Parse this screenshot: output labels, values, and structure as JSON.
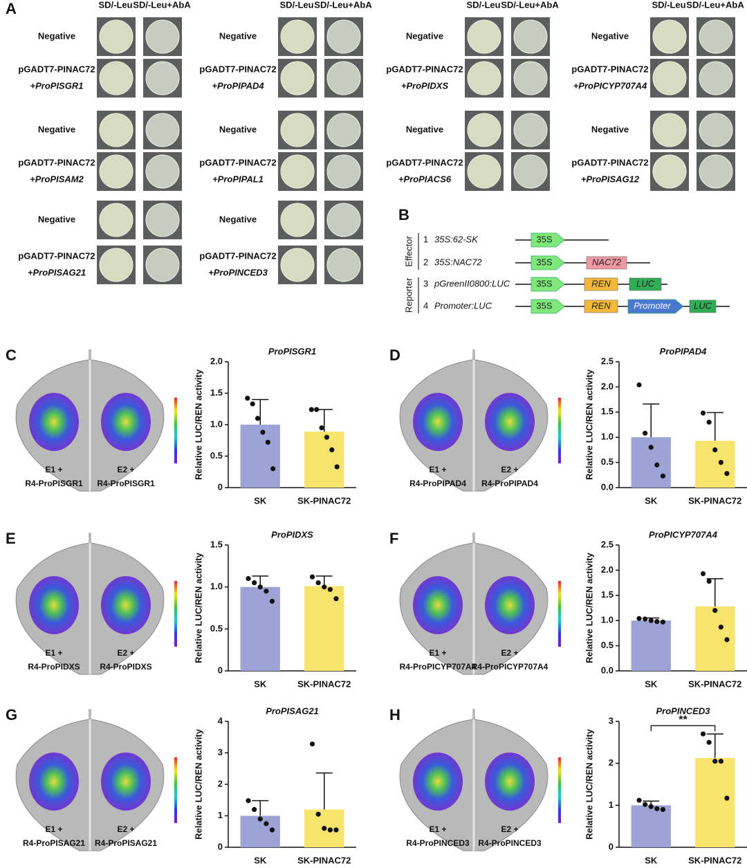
{
  "yeast": {
    "label": "A",
    "columns": [
      {
        "headers": [
          "SD/-Leu",
          "SD/-Leu+AbA"
        ],
        "groups": [
          {
            "negative": "Negative",
            "effector": "pGADT7-PINAC72",
            "promoter": "+ProPISGR1"
          },
          {
            "negative": "Negative",
            "effector": "pGADT7-PINAC72",
            "promoter": "+ProPISAM2"
          },
          {
            "negative": "Negative",
            "effector": "pGADT7-PINAC72",
            "promoter": "+ProPISAG21"
          }
        ]
      },
      {
        "headers": [
          "SD/-Leu",
          "SD/-Leu+AbA"
        ],
        "groups": [
          {
            "negative": "Negative",
            "effector": "pGADT7-PINAC72",
            "promoter": "+ProPIPAD4"
          },
          {
            "negative": "Negative",
            "effector": "pGADT7-PINAC72",
            "promoter": "+ProPIPAL1"
          },
          {
            "negative": "Negative",
            "effector": "pGADT7-PINAC72",
            "promoter": "+ProPINCED3"
          }
        ]
      },
      {
        "headers": [
          "SD/-Leu",
          "SD/-Leu+AbA"
        ],
        "groups": [
          {
            "negative": "Negative",
            "effector": "pGADT7-PINAC72",
            "promoter": "+ProPIDXS"
          },
          {
            "negative": "Negative",
            "effector": "pGADT7-PINAC72",
            "promoter": "+ProPIACS6"
          }
        ]
      },
      {
        "headers": [
          "SD/-Leu",
          "SD/-Leu+AbA"
        ],
        "groups": [
          {
            "negative": "Negative",
            "effector": "pGADT7-PINAC72",
            "promoter": "+ProPICYP707A4"
          },
          {
            "negative": "Negative",
            "effector": "pGADT7-PINAC72",
            "promoter": "+ProPISAG12"
          }
        ]
      }
    ]
  },
  "constructs": {
    "label": "B",
    "groups": [
      "Effector",
      "Reporter"
    ],
    "rows": [
      {
        "number": "1",
        "name": "35S:62-SK",
        "parts": [
          "35S"
        ]
      },
      {
        "number": "2",
        "name": "35S:NAC72",
        "parts": [
          "35S",
          "NAC72"
        ]
      },
      {
        "number": "3",
        "name": "pGreenII0800:LUC",
        "parts": [
          "35S",
          "REN",
          "LUC"
        ]
      },
      {
        "number": "4",
        "name": "Promoter:LUC",
        "parts": [
          "35S",
          "REN",
          "Promoter",
          "LUC"
        ]
      }
    ]
  },
  "leaves": [
    {
      "label": "C",
      "left": [
        "E1 +",
        "R4-ProPISGR1"
      ],
      "right": [
        "E2 +",
        "R4-ProPISGR1"
      ]
    },
    {
      "label": "D",
      "left": [
        "E1 +",
        "R4-ProPIPAD4"
      ],
      "right": [
        "E2 +",
        "R4-ProPIPAD4"
      ]
    },
    {
      "label": "E",
      "left": [
        "E1 +",
        "R4-ProPIDXS"
      ],
      "right": [
        "E2 +",
        "R4-ProPIDXS"
      ]
    },
    {
      "label": "F",
      "left": [
        "E1 +",
        "R4-ProPICYP707A4"
      ],
      "right": [
        "E2 +",
        "R4-ProPICYP707A4"
      ]
    },
    {
      "label": "G",
      "left": [
        "E1 +",
        "R4-ProPISAG21"
      ],
      "right": [
        "E2 +",
        "R4-ProPISAG21"
      ]
    },
    {
      "label": "H",
      "left": [
        "E1 +",
        "R4-ProPINCED3"
      ],
      "right": [
        "E2 +",
        "R4-ProPINCED3"
      ]
    }
  ],
  "chart_data": [
    {
      "type": "bar",
      "title": "ProPISGR1",
      "y_label": "Relative LUC/REN activity",
      "categories": [
        "SK",
        "SK-PINAC72"
      ],
      "values": [
        1.0,
        0.89
      ],
      "errors": [
        0.4,
        0.35
      ],
      "points": [
        [
          1.42,
          1.33,
          1.1,
          0.88,
          0.72,
          0.3
        ],
        [
          1.24,
          1.24,
          0.95,
          0.8,
          0.6,
          0.33
        ]
      ],
      "colors": [
        "#9ea3d6",
        "#f8e46c"
      ],
      "ylim": [
        0,
        2
      ],
      "yticks": [
        0,
        0.5,
        {
          "value": 1,
          "label": "1.0"
        },
        1.5,
        {
          "value": 2,
          "label": "2.0"
        }
      ]
    },
    {
      "type": "bar",
      "title": "ProPIPAD4",
      "y_label": "Relative LUC/REN activity",
      "categories": [
        "SK",
        "SK-PINAC72"
      ],
      "values": [
        1.0,
        0.93
      ],
      "errors": [
        0.66,
        0.56
      ],
      "points": [
        [
          2.04,
          1.08,
          0.8,
          0.45,
          0.23
        ],
        [
          1.48,
          1.3,
          0.75,
          0.5,
          0.28
        ]
      ],
      "colors": [
        "#9ea3d6",
        "#f8e46c"
      ],
      "ylim": [
        0,
        2.5
      ],
      "yticks": [
        {
          "value": 0,
          "label": "0.0"
        },
        0.5,
        {
          "value": 1,
          "label": "1.0"
        },
        1.5,
        {
          "value": 2,
          "label": "2.0"
        },
        2.5
      ]
    },
    {
      "type": "bar",
      "title": "ProPIDXS",
      "y_label": "Relative LUC/REN activity",
      "categories": [
        "SK",
        "SK-PINAC72"
      ],
      "values": [
        1.0,
        1.01
      ],
      "errors": [
        0.13,
        0.12
      ],
      "points": [
        [
          1.1,
          1.05,
          1.0,
          0.95,
          0.83
        ],
        [
          1.12,
          1.05,
          1.0,
          0.97,
          0.86
        ]
      ],
      "colors": [
        "#9ea3d6",
        "#f8e46c"
      ],
      "ylim": [
        0,
        1.5
      ],
      "yticks": [
        0,
        0.5,
        {
          "value": 1,
          "label": "1.0"
        },
        1.5
      ]
    },
    {
      "type": "bar",
      "title": "ProPICYP707A4",
      "y_label": "Relative LUC/REN activity",
      "categories": [
        "SK",
        "SK-PINAC72"
      ],
      "values": [
        1.0,
        1.28
      ],
      "errors": [
        0.05,
        0.55
      ],
      "points": [
        [
          1.04,
          1.03,
          1.0,
          0.98,
          0.97
        ],
        [
          1.93,
          1.78,
          1.2,
          0.87,
          0.62
        ]
      ],
      "colors": [
        "#9ea3d6",
        "#f8e46c"
      ],
      "ylim": [
        0,
        2.5
      ],
      "yticks": [
        {
          "value": 0,
          "label": "0.0"
        },
        0.5,
        {
          "value": 1,
          "label": "1.0"
        },
        1.5,
        {
          "value": 2,
          "label": "2.0"
        },
        2.5
      ]
    },
    {
      "type": "bar",
      "title": "ProPISAG21",
      "y_label": "Relative LUC/REN activity",
      "categories": [
        "SK",
        "SK-PINAC72"
      ],
      "values": [
        1.0,
        1.2
      ],
      "errors": [
        0.48,
        1.16
      ],
      "points": [
        [
          1.48,
          1.2,
          0.9,
          0.75,
          0.55
        ],
        [
          3.28,
          1.05,
          0.6,
          0.55,
          0.55
        ]
      ],
      "colors": [
        "#9ea3d6",
        "#f8e46c"
      ],
      "ylim": [
        0,
        4
      ],
      "yticks": [
        0,
        1,
        2,
        3,
        4
      ]
    },
    {
      "type": "bar",
      "title": "ProPINCED3",
      "y_label": "Relative LUC/REN activity",
      "categories": [
        "SK",
        "SK-PINAC72"
      ],
      "values": [
        1.0,
        2.13
      ],
      "errors": [
        0.1,
        0.57
      ],
      "points": [
        [
          1.12,
          1.02,
          0.97,
          0.92,
          0.9
        ],
        [
          2.7,
          2.5,
          2.05,
          2.05,
          1.17
        ]
      ],
      "colors": [
        "#9ea3d6",
        "#f8e46c"
      ],
      "ylim": [
        0,
        3
      ],
      "yticks": [
        0,
        1,
        2,
        3
      ],
      "annotation": "**"
    }
  ]
}
